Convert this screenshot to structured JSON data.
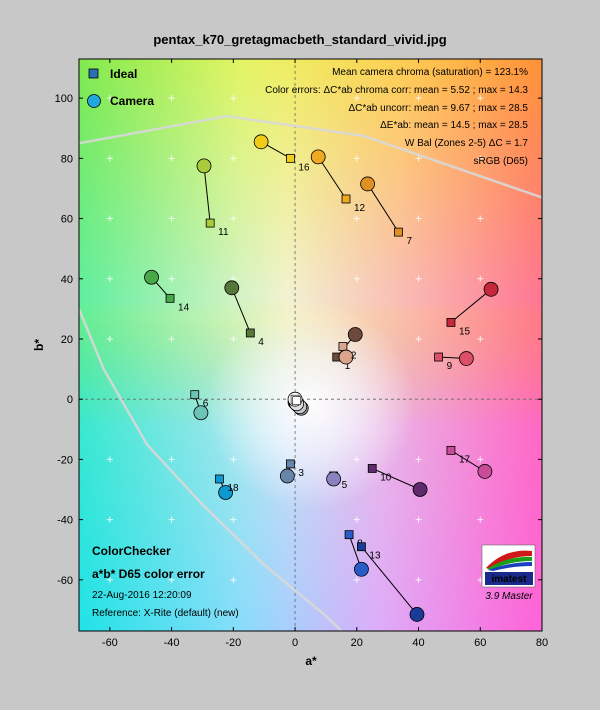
{
  "chart_data": {
    "type": "scatter",
    "title": "pentax_k70_gretagmacbeth_standard_vivid.jpg",
    "xlabel": "a*",
    "ylabel": "b*",
    "xlim": [
      -70,
      80
    ],
    "ylim": [
      -77,
      113
    ],
    "xticks": [
      -60,
      -40,
      -20,
      0,
      20,
      40,
      60,
      80
    ],
    "yticks": [
      -60,
      -40,
      -20,
      0,
      20,
      40,
      60,
      80,
      100
    ],
    "legend": [
      "Ideal",
      "Camera"
    ],
    "annotations": {
      "stats": [
        "Mean camera chroma (saturation) = 123.1%",
        "Color errors: ΔC*ab chroma corr:  mean = 5.52 ;  max = 14.3",
        "ΔC*ab uncorr:  mean = 9.67 ;  max = 28.5",
        "ΔE*ab:  mean = 14.5 ;  max = 28.5",
        "W Bal (Zones 2-5) ΔC = 1.7",
        "sRGB (D65)"
      ],
      "bottom_left": [
        "ColorChecker",
        "a*b* D65 color error",
        "22-Aug-2016 12:20:09",
        "Reference: X-Rite (default) (new)"
      ],
      "logo": "imatest",
      "version": "3.9  Master"
    },
    "patches": [
      {
        "id": "1",
        "ideal": [
          13.5,
          14.0
        ],
        "camera": [
          19.5,
          21.5
        ],
        "color": "#6e4a3c"
      },
      {
        "id": "2",
        "ideal": [
          15.5,
          17.5
        ],
        "camera": [
          16.5,
          14.0
        ],
        "color": "#d9a58c"
      },
      {
        "id": "3",
        "ideal": [
          -1.5,
          -21.5
        ],
        "camera": [
          -2.5,
          -25.5
        ],
        "color": "#6685a8"
      },
      {
        "id": "4",
        "ideal": [
          -14.5,
          22.0
        ],
        "camera": [
          -20.5,
          37.0
        ],
        "color": "#55783a"
      },
      {
        "id": "5",
        "ideal": [
          12.5,
          -25.5
        ],
        "camera": [
          12.5,
          -26.5
        ],
        "color": "#8a82be"
      },
      {
        "id": "6",
        "ideal": [
          -32.5,
          1.5
        ],
        "camera": [
          -30.5,
          -4.5
        ],
        "color": "#6cc4b6"
      },
      {
        "id": "7",
        "ideal": [
          33.5,
          55.5
        ],
        "camera": [
          23.5,
          71.5
        ],
        "color": "#e09020"
      },
      {
        "id": "8",
        "ideal": [
          17.5,
          -45.0
        ],
        "camera": [
          21.5,
          -56.5
        ],
        "color": "#2a5cc8"
      },
      {
        "id": "9",
        "ideal": [
          46.5,
          14.0
        ],
        "camera": [
          55.5,
          13.5
        ],
        "color": "#dc4f66"
      },
      {
        "id": "10",
        "ideal": [
          25.0,
          -23.0
        ],
        "camera": [
          40.5,
          -30.0
        ],
        "color": "#5d2a6c"
      },
      {
        "id": "11",
        "ideal": [
          -27.5,
          58.5
        ],
        "camera": [
          -29.5,
          77.5
        ],
        "color": "#a8cc3a"
      },
      {
        "id": "12",
        "ideal": [
          16.5,
          66.5
        ],
        "camera": [
          7.5,
          80.5
        ],
        "color": "#f0a820"
      },
      {
        "id": "13",
        "ideal": [
          21.5,
          -49.0
        ],
        "camera": [
          39.5,
          -71.5
        ],
        "color": "#1a3c98"
      },
      {
        "id": "14",
        "ideal": [
          -40.5,
          33.5
        ],
        "camera": [
          -46.5,
          40.5
        ],
        "color": "#48a848"
      },
      {
        "id": "15",
        "ideal": [
          50.5,
          25.5
        ],
        "camera": [
          63.5,
          36.5
        ],
        "color": "#c4283a"
      },
      {
        "id": "16",
        "ideal": [
          -1.5,
          80.0
        ],
        "camera": [
          -11.0,
          85.5
        ],
        "color": "#f0cc18"
      },
      {
        "id": "17",
        "ideal": [
          50.5,
          -17.0
        ],
        "camera": [
          61.5,
          -24.0
        ],
        "color": "#c84c98"
      },
      {
        "id": "18",
        "ideal": [
          -24.5,
          -26.5
        ],
        "camera": [
          -22.5,
          -31.0
        ],
        "color": "#0c9ad0"
      }
    ],
    "neutrals": {
      "ideal": [
        [
          0,
          0
        ],
        [
          0.5,
          -0.5
        ]
      ],
      "camera": [
        [
          0,
          -1
        ],
        [
          1,
          -2
        ],
        [
          2,
          -3
        ],
        [
          1.5,
          -2.5
        ],
        [
          0.5,
          -1.5
        ],
        [
          0,
          0
        ]
      ]
    },
    "gamut_outline": {
      "srgb_top": [
        [
          -70,
          85
        ],
        [
          -22,
          94
        ],
        [
          22,
          87.5
        ],
        [
          80,
          67
        ]
      ],
      "srgb_left": [
        [
          -70,
          30
        ],
        [
          -62,
          10
        ],
        [
          -48,
          -15
        ],
        [
          -30,
          -35
        ],
        [
          -10,
          -55
        ],
        [
          10,
          -72
        ],
        [
          15,
          -77
        ]
      ]
    }
  }
}
